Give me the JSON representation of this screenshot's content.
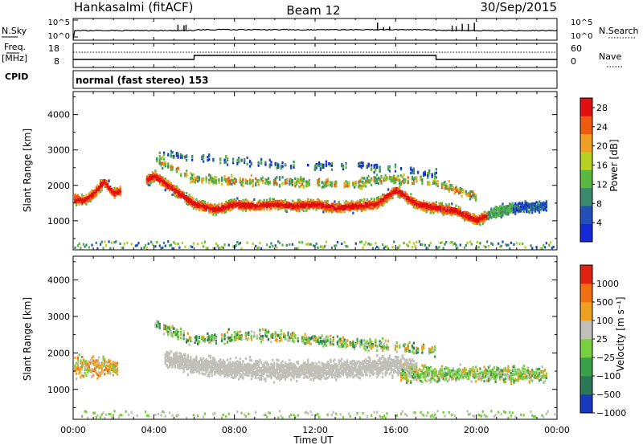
{
  "header": {
    "station": "Hankasalmi (fitACF)",
    "beam": "Beam 12",
    "date": "30/Sep/2015"
  },
  "nsky_panel": {
    "left_label": "N.Sky",
    "left_ticks": [
      "10^5",
      "10^0"
    ],
    "right_label": "N.Search",
    "right_ticks": [
      "10^5",
      "10^0"
    ]
  },
  "freq_panel": {
    "left_label_top": "Freq.",
    "left_label_unit": "[MHz]",
    "left_ticks": [
      "18",
      "8"
    ],
    "right_label": "Nave",
    "right_ticks": [
      "60",
      "0"
    ]
  },
  "cpid_panel": {
    "label": "CPID",
    "text": "normal (fast stereo) 153"
  },
  "chart_data": [
    {
      "type": "heatmap",
      "title": "",
      "xlabel": "",
      "ylabel": "Slant Range [km]",
      "x_ticks": [
        "00:00",
        "04:00",
        "08:00",
        "12:00",
        "16:00",
        "20:00",
        "00:00"
      ],
      "y_ticks": [
        "1000",
        "2000",
        "3000",
        "4000"
      ],
      "xlim": [
        0,
        24
      ],
      "ylim": [
        180,
        4650
      ],
      "colorbar": {
        "label": "Power [dB]",
        "ticks": [
          "4",
          "8",
          "12",
          "16",
          "20",
          "24",
          "28"
        ],
        "range": [
          0,
          30
        ],
        "colors": [
          "#1428d8",
          "#2050b8",
          "#3a8a70",
          "#58b840",
          "#b8d020",
          "#f0a020",
          "#f05a10",
          "#e01010"
        ]
      },
      "series": [
        {
          "name": "main",
          "points": [
            [
              0.0,
              1650
            ],
            [
              0.5,
              1600
            ],
            [
              1.0,
              1800
            ],
            [
              1.5,
              2150
            ],
            [
              2.0,
              1800
            ],
            [
              4.0,
              2300
            ],
            [
              5.0,
              1900
            ],
            [
              6.0,
              1500
            ],
            [
              7.0,
              1350
            ],
            [
              8.0,
              1500
            ],
            [
              9.0,
              1450
            ],
            [
              10.0,
              1500
            ],
            [
              11.0,
              1450
            ],
            [
              12.0,
              1500
            ],
            [
              13.0,
              1400
            ],
            [
              14.0,
              1450
            ],
            [
              15.0,
              1500
            ],
            [
              16.0,
              1900
            ],
            [
              17.0,
              1500
            ],
            [
              18.0,
              1400
            ],
            [
              19.0,
              1300
            ],
            [
              20.0,
              1050
            ],
            [
              21.0,
              1300
            ],
            [
              22.0,
              1400
            ],
            [
              23.5,
              1450
            ]
          ]
        },
        {
          "name": "upper",
          "points": [
            [
              4.0,
              2800
            ],
            [
              5.0,
              2500
            ],
            [
              6.0,
              2200
            ],
            [
              8.0,
              2150
            ],
            [
              10.0,
              2150
            ],
            [
              12.0,
              2100
            ],
            [
              14.0,
              2050
            ],
            [
              15.0,
              2200
            ],
            [
              16.0,
              2200
            ],
            [
              17.0,
              2200
            ],
            [
              18.0,
              2100
            ],
            [
              19.0,
              1900
            ],
            [
              20.0,
              1700
            ]
          ]
        },
        {
          "name": "ionospheric",
          "points": [
            [
              4.0,
              2950
            ],
            [
              6.0,
              2800
            ],
            [
              8.0,
              2750
            ],
            [
              10.0,
              2600
            ],
            [
              12.0,
              2600
            ],
            [
              14.0,
              2600
            ],
            [
              16.0,
              2500
            ],
            [
              18.0,
              2350
            ]
          ]
        }
      ]
    },
    {
      "type": "heatmap",
      "title": "",
      "xlabel": "Time UT",
      "ylabel": "Slant Range [km]",
      "x_ticks": [
        "00:00",
        "04:00",
        "08:00",
        "12:00",
        "16:00",
        "20:00",
        "00:00"
      ],
      "y_ticks": [
        "1000",
        "2000",
        "3000",
        "4000"
      ],
      "xlim": [
        0,
        24
      ],
      "ylim": [
        180,
        4650
      ],
      "colorbar": {
        "label": "Velocity [m s⁻¹]",
        "ticks": [
          "1000",
          "500",
          "100",
          "25",
          "−25",
          "−100",
          "−500",
          "−1000"
        ],
        "colors": [
          "#1838c0",
          "#2a7858",
          "#3aa048",
          "#78d040",
          "#c0c0b8",
          "#f0a020",
          "#f07010",
          "#e02010"
        ]
      },
      "series": [
        {
          "name": "ground-scatter",
          "points": [
            [
              4.5,
              1900
            ],
            [
              6.0,
              1700
            ],
            [
              8.0,
              1600
            ],
            [
              10.0,
              1550
            ],
            [
              12.0,
              1550
            ],
            [
              14.0,
              1600
            ],
            [
              16.0,
              1700
            ],
            [
              17.0,
              1600
            ]
          ]
        },
        {
          "name": "upper",
          "points": [
            [
              4.0,
              2800
            ],
            [
              6.0,
              2400
            ],
            [
              8.0,
              2500
            ],
            [
              10.0,
              2500
            ],
            [
              12.0,
              2400
            ],
            [
              14.0,
              2300
            ],
            [
              16.0,
              2200
            ],
            [
              18.0,
              2100
            ]
          ]
        }
      ]
    }
  ]
}
